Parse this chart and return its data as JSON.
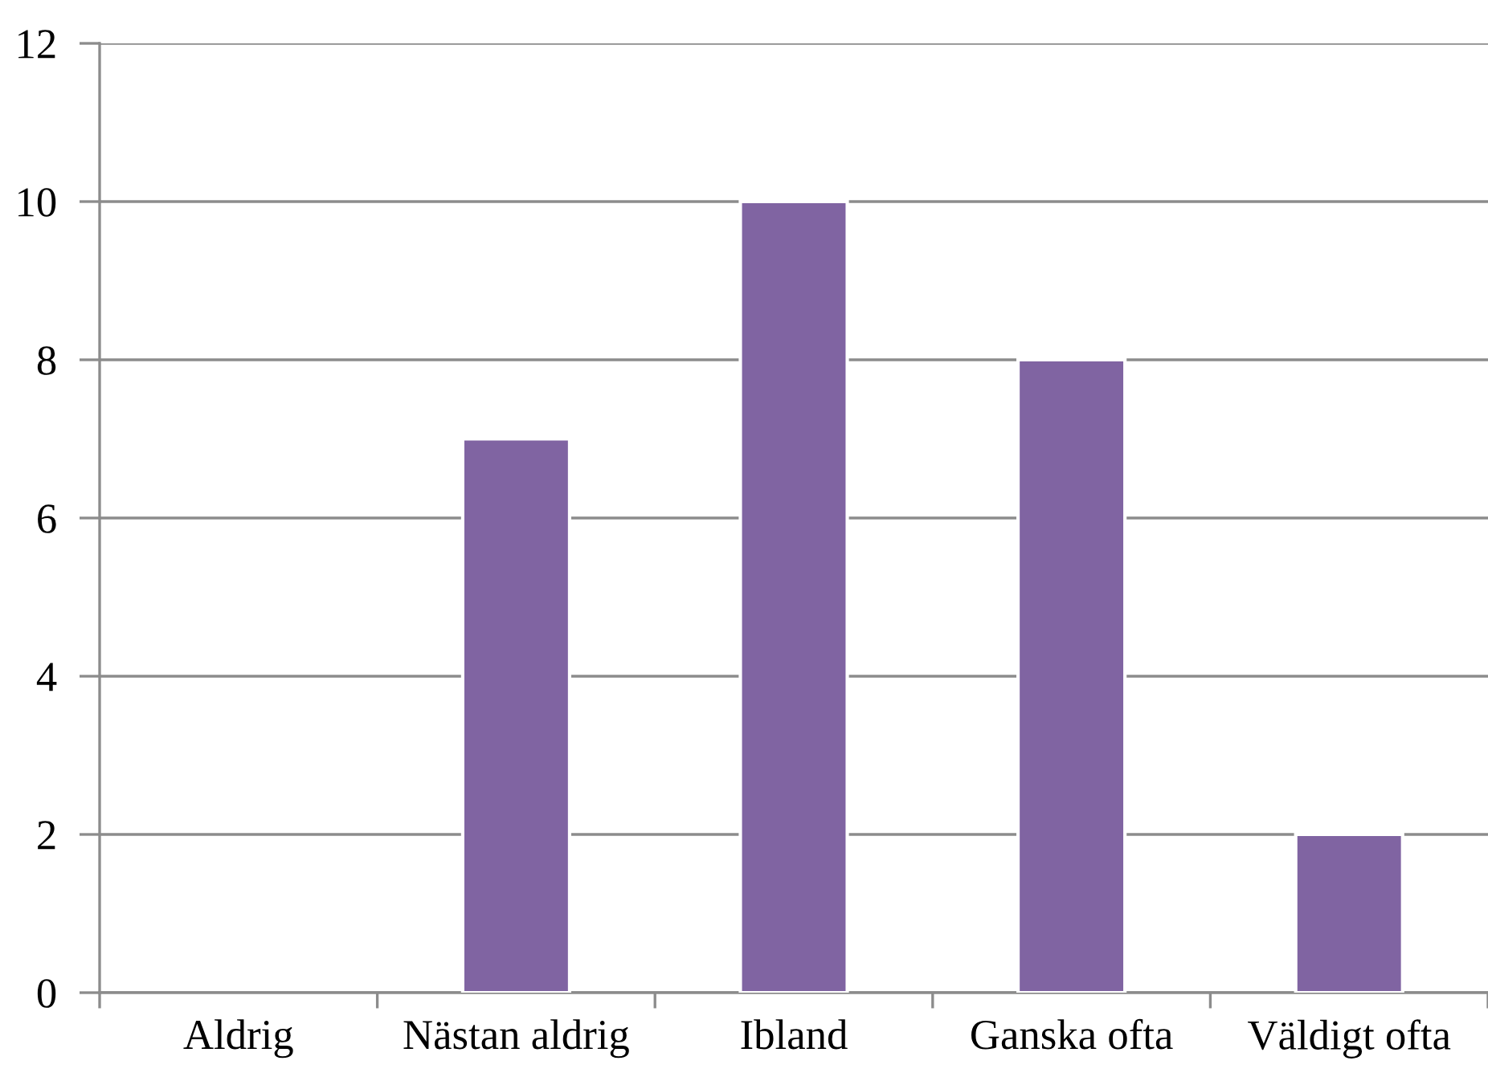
{
  "chart_data": {
    "type": "bar",
    "categories": [
      "Aldrig",
      "Nästan aldrig",
      "Ibland",
      "Ganska ofta",
      "Väldigt ofta"
    ],
    "values": [
      0,
      7,
      10,
      8,
      2
    ],
    "color": "#8064a2",
    "ylim": [
      0,
      12
    ],
    "yticks": [
      0,
      2,
      4,
      6,
      8,
      10,
      12
    ],
    "grid": "y"
  }
}
